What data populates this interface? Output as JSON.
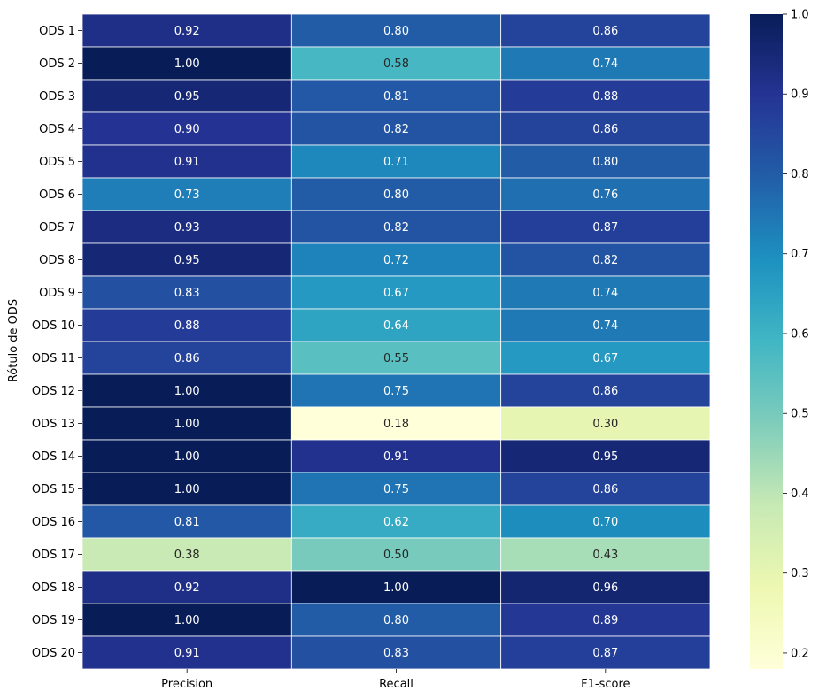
{
  "chart_data": {
    "type": "heatmap",
    "ylabel": "Rótulo de ODS",
    "xlabel": "",
    "columns": [
      "Precision",
      "Recall",
      "F1-score"
    ],
    "rows": [
      "ODS 1",
      "ODS 2",
      "ODS 3",
      "ODS 4",
      "ODS 5",
      "ODS 6",
      "ODS 7",
      "ODS 8",
      "ODS 9",
      "ODS 10",
      "ODS 11",
      "ODS 12",
      "ODS 13",
      "ODS 14",
      "ODS 15",
      "ODS 16",
      "ODS 17",
      "ODS 18",
      "ODS 19",
      "ODS 20"
    ],
    "values": [
      [
        0.92,
        0.8,
        0.86
      ],
      [
        1.0,
        0.58,
        0.74
      ],
      [
        0.95,
        0.81,
        0.88
      ],
      [
        0.9,
        0.82,
        0.86
      ],
      [
        0.91,
        0.71,
        0.8
      ],
      [
        0.73,
        0.8,
        0.76
      ],
      [
        0.93,
        0.82,
        0.87
      ],
      [
        0.95,
        0.72,
        0.82
      ],
      [
        0.83,
        0.67,
        0.74
      ],
      [
        0.88,
        0.64,
        0.74
      ],
      [
        0.86,
        0.55,
        0.67
      ],
      [
        1.0,
        0.75,
        0.86
      ],
      [
        1.0,
        0.18,
        0.3
      ],
      [
        1.0,
        0.91,
        0.95
      ],
      [
        1.0,
        0.75,
        0.86
      ],
      [
        0.81,
        0.62,
        0.7
      ],
      [
        0.38,
        0.5,
        0.43
      ],
      [
        0.92,
        1.0,
        0.96
      ],
      [
        1.0,
        0.8,
        0.89
      ],
      [
        0.91,
        0.83,
        0.87
      ]
    ],
    "value_format": "2 decimals",
    "colormap": "YlGnBu",
    "colorbar": {
      "range": [
        0.18,
        1.0
      ],
      "ticks": [
        0.2,
        0.3,
        0.4,
        0.5,
        0.6,
        0.7,
        0.8,
        0.9,
        1.0
      ],
      "tick_labels": [
        "0.2",
        "0.3",
        "0.4",
        "0.5",
        "0.6",
        "0.7",
        "0.8",
        "0.9",
        "1.0"
      ],
      "placement": "right"
    },
    "cell_border_color": "#ffffff"
  }
}
